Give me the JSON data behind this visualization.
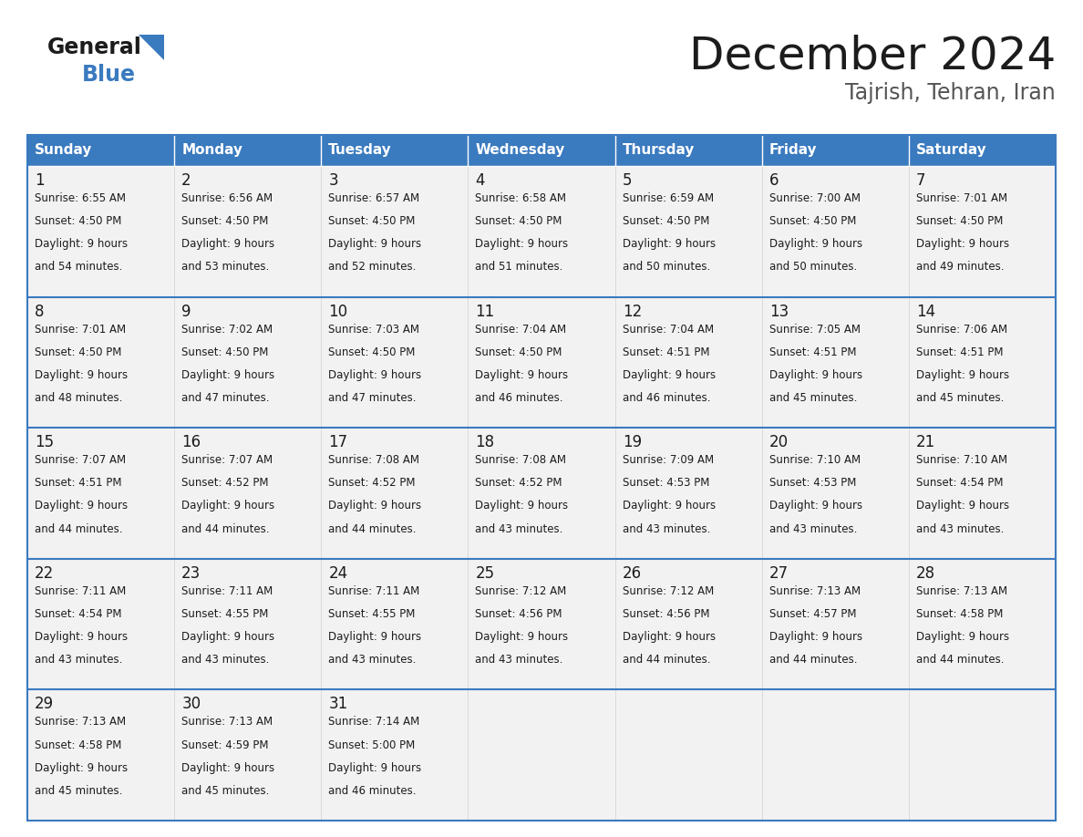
{
  "title": "December 2024",
  "subtitle": "Tajrish, Tehran, Iran",
  "header_color": "#3a7abf",
  "header_text_color": "#ffffff",
  "cell_bg_even": "#f2f2f2",
  "cell_bg_odd": "#ffffff",
  "border_color": "#3a7abf",
  "days_of_week": [
    "Sunday",
    "Monday",
    "Tuesday",
    "Wednesday",
    "Thursday",
    "Friday",
    "Saturday"
  ],
  "calendar": [
    [
      {
        "day": 1,
        "sunrise": "6:55 AM",
        "sunset": "4:50 PM",
        "daylight_hours": 9,
        "daylight_minutes": 54
      },
      {
        "day": 2,
        "sunrise": "6:56 AM",
        "sunset": "4:50 PM",
        "daylight_hours": 9,
        "daylight_minutes": 53
      },
      {
        "day": 3,
        "sunrise": "6:57 AM",
        "sunset": "4:50 PM",
        "daylight_hours": 9,
        "daylight_minutes": 52
      },
      {
        "day": 4,
        "sunrise": "6:58 AM",
        "sunset": "4:50 PM",
        "daylight_hours": 9,
        "daylight_minutes": 51
      },
      {
        "day": 5,
        "sunrise": "6:59 AM",
        "sunset": "4:50 PM",
        "daylight_hours": 9,
        "daylight_minutes": 50
      },
      {
        "day": 6,
        "sunrise": "7:00 AM",
        "sunset": "4:50 PM",
        "daylight_hours": 9,
        "daylight_minutes": 50
      },
      {
        "day": 7,
        "sunrise": "7:01 AM",
        "sunset": "4:50 PM",
        "daylight_hours": 9,
        "daylight_minutes": 49
      }
    ],
    [
      {
        "day": 8,
        "sunrise": "7:01 AM",
        "sunset": "4:50 PM",
        "daylight_hours": 9,
        "daylight_minutes": 48
      },
      {
        "day": 9,
        "sunrise": "7:02 AM",
        "sunset": "4:50 PM",
        "daylight_hours": 9,
        "daylight_minutes": 47
      },
      {
        "day": 10,
        "sunrise": "7:03 AM",
        "sunset": "4:50 PM",
        "daylight_hours": 9,
        "daylight_minutes": 47
      },
      {
        "day": 11,
        "sunrise": "7:04 AM",
        "sunset": "4:50 PM",
        "daylight_hours": 9,
        "daylight_minutes": 46
      },
      {
        "day": 12,
        "sunrise": "7:04 AM",
        "sunset": "4:51 PM",
        "daylight_hours": 9,
        "daylight_minutes": 46
      },
      {
        "day": 13,
        "sunrise": "7:05 AM",
        "sunset": "4:51 PM",
        "daylight_hours": 9,
        "daylight_minutes": 45
      },
      {
        "day": 14,
        "sunrise": "7:06 AM",
        "sunset": "4:51 PM",
        "daylight_hours": 9,
        "daylight_minutes": 45
      }
    ],
    [
      {
        "day": 15,
        "sunrise": "7:07 AM",
        "sunset": "4:51 PM",
        "daylight_hours": 9,
        "daylight_minutes": 44
      },
      {
        "day": 16,
        "sunrise": "7:07 AM",
        "sunset": "4:52 PM",
        "daylight_hours": 9,
        "daylight_minutes": 44
      },
      {
        "day": 17,
        "sunrise": "7:08 AM",
        "sunset": "4:52 PM",
        "daylight_hours": 9,
        "daylight_minutes": 44
      },
      {
        "day": 18,
        "sunrise": "7:08 AM",
        "sunset": "4:52 PM",
        "daylight_hours": 9,
        "daylight_minutes": 43
      },
      {
        "day": 19,
        "sunrise": "7:09 AM",
        "sunset": "4:53 PM",
        "daylight_hours": 9,
        "daylight_minutes": 43
      },
      {
        "day": 20,
        "sunrise": "7:10 AM",
        "sunset": "4:53 PM",
        "daylight_hours": 9,
        "daylight_minutes": 43
      },
      {
        "day": 21,
        "sunrise": "7:10 AM",
        "sunset": "4:54 PM",
        "daylight_hours": 9,
        "daylight_minutes": 43
      }
    ],
    [
      {
        "day": 22,
        "sunrise": "7:11 AM",
        "sunset": "4:54 PM",
        "daylight_hours": 9,
        "daylight_minutes": 43
      },
      {
        "day": 23,
        "sunrise": "7:11 AM",
        "sunset": "4:55 PM",
        "daylight_hours": 9,
        "daylight_minutes": 43
      },
      {
        "day": 24,
        "sunrise": "7:11 AM",
        "sunset": "4:55 PM",
        "daylight_hours": 9,
        "daylight_minutes": 43
      },
      {
        "day": 25,
        "sunrise": "7:12 AM",
        "sunset": "4:56 PM",
        "daylight_hours": 9,
        "daylight_minutes": 43
      },
      {
        "day": 26,
        "sunrise": "7:12 AM",
        "sunset": "4:56 PM",
        "daylight_hours": 9,
        "daylight_minutes": 44
      },
      {
        "day": 27,
        "sunrise": "7:13 AM",
        "sunset": "4:57 PM",
        "daylight_hours": 9,
        "daylight_minutes": 44
      },
      {
        "day": 28,
        "sunrise": "7:13 AM",
        "sunset": "4:58 PM",
        "daylight_hours": 9,
        "daylight_minutes": 44
      }
    ],
    [
      {
        "day": 29,
        "sunrise": "7:13 AM",
        "sunset": "4:58 PM",
        "daylight_hours": 9,
        "daylight_minutes": 45
      },
      {
        "day": 30,
        "sunrise": "7:13 AM",
        "sunset": "4:59 PM",
        "daylight_hours": 9,
        "daylight_minutes": 45
      },
      {
        "day": 31,
        "sunrise": "7:14 AM",
        "sunset": "5:00 PM",
        "daylight_hours": 9,
        "daylight_minutes": 46
      },
      null,
      null,
      null,
      null
    ]
  ],
  "fig_width": 11.88,
  "fig_height": 9.18,
  "dpi": 100
}
